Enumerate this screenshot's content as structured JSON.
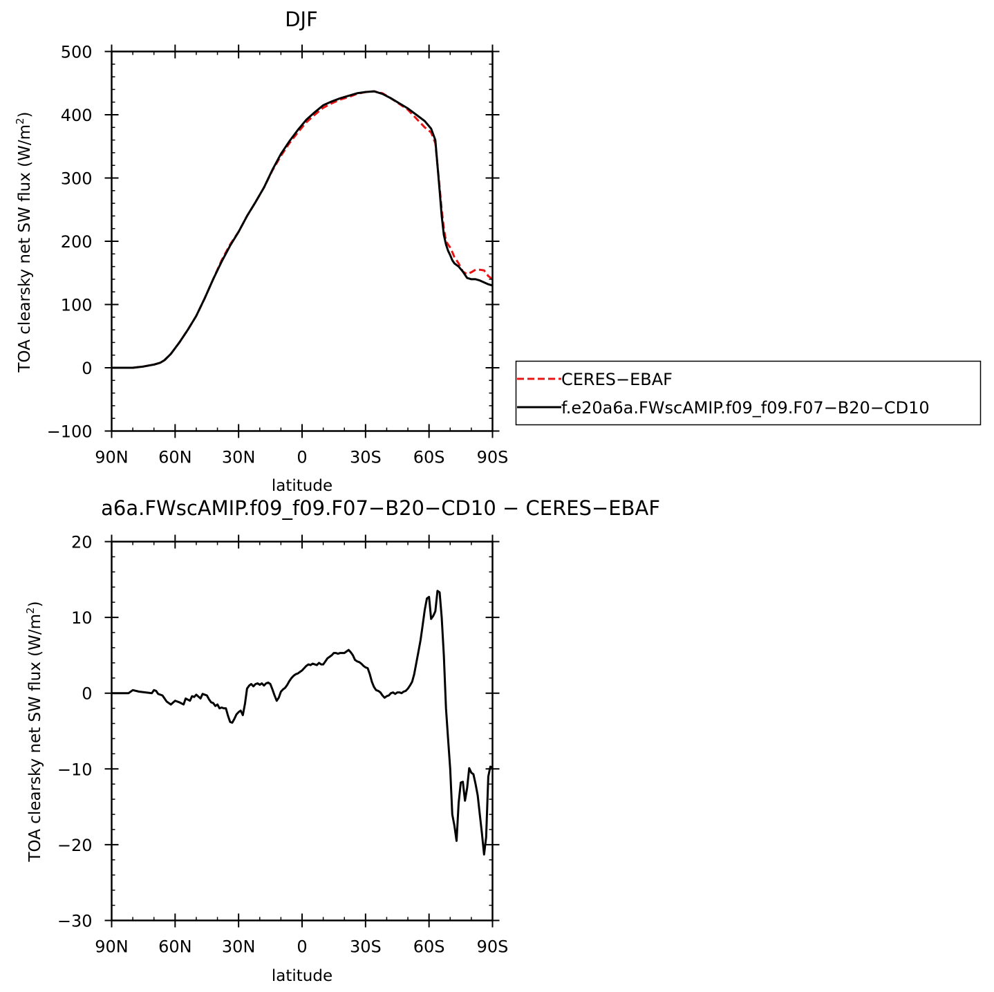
{
  "chart_data": [
    {
      "type": "line",
      "title": "DJF",
      "xlabel": "latitude",
      "ylabel_text": "TOA clearsky net SW flux (W/m",
      "ylabel_sup": "2",
      "ylabel_close": ")",
      "xlim": [
        -90,
        90
      ],
      "ylim": [
        -100,
        500
      ],
      "xticks": [
        {
          "value": -90,
          "label": "90N"
        },
        {
          "value": -60,
          "label": "60N"
        },
        {
          "value": -30,
          "label": "30N"
        },
        {
          "value": 0,
          "label": "0"
        },
        {
          "value": 30,
          "label": "30S"
        },
        {
          "value": 60,
          "label": "60S"
        },
        {
          "value": 90,
          "label": "90S"
        }
      ],
      "yticks": [
        {
          "value": -100,
          "label": "−100"
        },
        {
          "value": 0,
          "label": "0"
        },
        {
          "value": 100,
          "label": "100"
        },
        {
          "value": 200,
          "label": "200"
        },
        {
          "value": 300,
          "label": "300"
        },
        {
          "value": 400,
          "label": "400"
        },
        {
          "value": 500,
          "label": "500"
        }
      ],
      "legend": {
        "position": "right"
      },
      "series": [
        {
          "name": "CERES−EBAF",
          "color": "#e81414",
          "dash": "dashed",
          "x": [
            -90,
            -80,
            -75,
            -70,
            -67,
            -65,
            -62,
            -58,
            -54,
            -50,
            -46,
            -42,
            -38,
            -34,
            -30,
            -26,
            -22,
            -18,
            -14,
            -10,
            -6,
            -2,
            2,
            6,
            10,
            14,
            18,
            22,
            26,
            30,
            34,
            38,
            42,
            46,
            50,
            54,
            58,
            61,
            63,
            64,
            65,
            66,
            67,
            68,
            69,
            70,
            71,
            72,
            74,
            76,
            78,
            80,
            82,
            84,
            86,
            88,
            90
          ],
          "y": [
            0,
            0,
            2,
            5,
            8,
            12,
            22,
            40,
            60,
            82,
            110,
            140,
            170,
            195,
            215,
            240,
            262,
            285,
            312,
            335,
            355,
            372,
            388,
            400,
            411,
            418,
            424,
            428,
            433,
            436,
            437,
            434,
            426,
            417,
            408,
            394,
            380,
            372,
            355,
            320,
            285,
            250,
            220,
            200,
            195,
            190,
            183,
            175,
            165,
            152,
            148,
            151,
            155,
            155,
            154,
            145,
            140
          ]
        },
        {
          "name": "f.e20a6a.FWscAMIP.f09_f09.F07−B20−CD10",
          "color": "#000000",
          "dash": "solid",
          "x": [
            -90,
            -80,
            -75,
            -70,
            -67,
            -65,
            -62,
            -58,
            -54,
            -50,
            -46,
            -42,
            -38,
            -34,
            -30,
            -26,
            -22,
            -18,
            -14,
            -10,
            -6,
            -2,
            2,
            6,
            10,
            14,
            18,
            22,
            26,
            30,
            34,
            38,
            42,
            46,
            50,
            54,
            58,
            61,
            63,
            64,
            65,
            66,
            67,
            68,
            69,
            70,
            71,
            72,
            74,
            76,
            78,
            80,
            82,
            84,
            86,
            88,
            90
          ],
          "y": [
            0,
            0,
            2,
            5,
            8,
            12,
            22,
            40,
            60,
            82,
            110,
            140,
            168,
            193,
            215,
            240,
            262,
            285,
            313,
            338,
            358,
            376,
            392,
            404,
            415,
            421,
            426,
            430,
            434,
            436,
            437,
            433,
            426,
            418,
            410,
            400,
            390,
            378,
            360,
            320,
            280,
            240,
            210,
            195,
            185,
            178,
            170,
            165,
            160,
            152,
            142,
            140,
            140,
            138,
            135,
            132,
            130
          ]
        }
      ]
    },
    {
      "type": "line",
      "title": "a6a.FWscAMIP.f09_f09.F07−B20−CD10 − CERES−EBAF",
      "xlabel": "latitude",
      "ylabel_text": "TOA clearsky net SW flux (W/m",
      "ylabel_sup": "2",
      "ylabel_close": ")",
      "xlim": [
        -90,
        90
      ],
      "ylim": [
        -30,
        20
      ],
      "xticks": [
        {
          "value": -90,
          "label": "90N"
        },
        {
          "value": -60,
          "label": "60N"
        },
        {
          "value": -30,
          "label": "30N"
        },
        {
          "value": 0,
          "label": "0"
        },
        {
          "value": 30,
          "label": "30S"
        },
        {
          "value": 60,
          "label": "60S"
        },
        {
          "value": 90,
          "label": "90S"
        }
      ],
      "yticks": [
        {
          "value": -30,
          "label": "−30"
        },
        {
          "value": -20,
          "label": "−20"
        },
        {
          "value": -10,
          "label": "−10"
        },
        {
          "value": 0,
          "label": "0"
        },
        {
          "value": 10,
          "label": "10"
        },
        {
          "value": 20,
          "label": "20"
        }
      ],
      "series": [
        {
          "color": "#000000",
          "dash": "solid",
          "x": [
            -90,
            -82,
            -80,
            -77,
            -74,
            -71,
            -70,
            -69,
            -68,
            -66,
            -64,
            -62,
            -60,
            -58,
            -56,
            -55,
            -53,
            -52,
            -51,
            -50,
            -48,
            -47,
            -46,
            -45,
            -44,
            -43,
            -42,
            -41,
            -40,
            -39,
            -38,
            -37,
            -36,
            -35,
            -34,
            -33,
            -32,
            -31,
            -30,
            -29,
            -28,
            -27,
            -26,
            -25,
            -24,
            -23,
            -22,
            -21,
            -20,
            -19,
            -18,
            -17,
            -16,
            -15,
            -14,
            -13,
            -12,
            -11,
            -10,
            -9,
            -8,
            -7,
            -6,
            -5,
            -4,
            -3,
            -2,
            -1,
            0,
            1,
            2,
            3,
            4,
            5,
            6,
            7,
            8,
            9,
            10,
            11,
            12,
            13,
            14,
            15,
            16,
            17,
            18,
            19,
            20,
            21,
            22,
            23,
            24,
            25,
            26,
            27,
            28,
            29,
            30,
            31,
            32,
            33,
            34,
            35,
            36,
            37,
            38,
            39,
            40,
            41,
            42,
            43,
            44,
            45,
            46,
            47,
            48,
            49,
            50,
            51,
            52,
            53,
            54,
            55,
            56,
            57,
            58,
            59,
            60,
            61,
            62,
            63,
            64,
            65,
            66,
            67,
            68,
            69,
            70,
            71,
            72,
            73,
            74,
            75,
            76,
            77,
            78,
            79,
            80,
            81,
            82,
            83,
            84,
            85,
            86,
            87,
            88,
            89,
            90
          ],
          "y": [
            0,
            0,
            0.4,
            0.2,
            0.1,
            0,
            0.4,
            0.3,
            -0.1,
            -0.3,
            -1.1,
            -1.5,
            -1.0,
            -1.2,
            -1.5,
            -0.7,
            -1.0,
            -0.4,
            -0.5,
            -0.2,
            -0.7,
            -0.1,
            -0.2,
            -0.3,
            -0.8,
            -1.2,
            -1.3,
            -1.7,
            -1.5,
            -2.0,
            -1.9,
            -2.0,
            -2.0,
            -3.0,
            -3.8,
            -3.9,
            -3.4,
            -2.8,
            -2.5,
            -2.3,
            -2.9,
            -1.4,
            0.6,
            1.0,
            1.2,
            0.9,
            1.2,
            1.3,
            1.1,
            1.3,
            1.0,
            1.3,
            1.4,
            1.2,
            0.5,
            -0.3,
            -1.0,
            -0.6,
            0.2,
            0.5,
            0.7,
            1.1,
            1.6,
            2.0,
            2.3,
            2.5,
            2.6,
            2.8,
            3.0,
            3.3,
            3.6,
            3.8,
            3.7,
            3.9,
            3.8,
            3.7,
            4.0,
            3.8,
            3.8,
            4.2,
            4.6,
            4.8,
            5.0,
            5.3,
            5.3,
            5.2,
            5.3,
            5.3,
            5.3,
            5.5,
            5.7,
            5.4,
            5.0,
            4.4,
            4.2,
            4.1,
            3.9,
            3.6,
            3.4,
            3.3,
            2.5,
            1.5,
            0.8,
            0.4,
            0.3,
            0.1,
            -0.3,
            -0.6,
            -0.4,
            -0.3,
            0.0,
            0.1,
            -0.1,
            0.1,
            0.1,
            0.0,
            0.2,
            0.3,
            0.6,
            1.0,
            1.5,
            2.5,
            4.0,
            5.5,
            7.0,
            9.0,
            11.0,
            12.5,
            12.7,
            9.8,
            10.2,
            10.8,
            13.5,
            13.3,
            10.0,
            5.0,
            -2.0,
            -6.0,
            -10.0,
            -16.0,
            -17.5,
            -19.5,
            -14.5,
            -11.8,
            -11.7,
            -14.2,
            -12.5,
            -9.9,
            -10.5,
            -10.7,
            -12.0,
            -13.5,
            -16.0,
            -18.5,
            -21.3,
            -19.0,
            -11.0,
            -9.7,
            -9.8
          ]
        }
      ]
    }
  ]
}
